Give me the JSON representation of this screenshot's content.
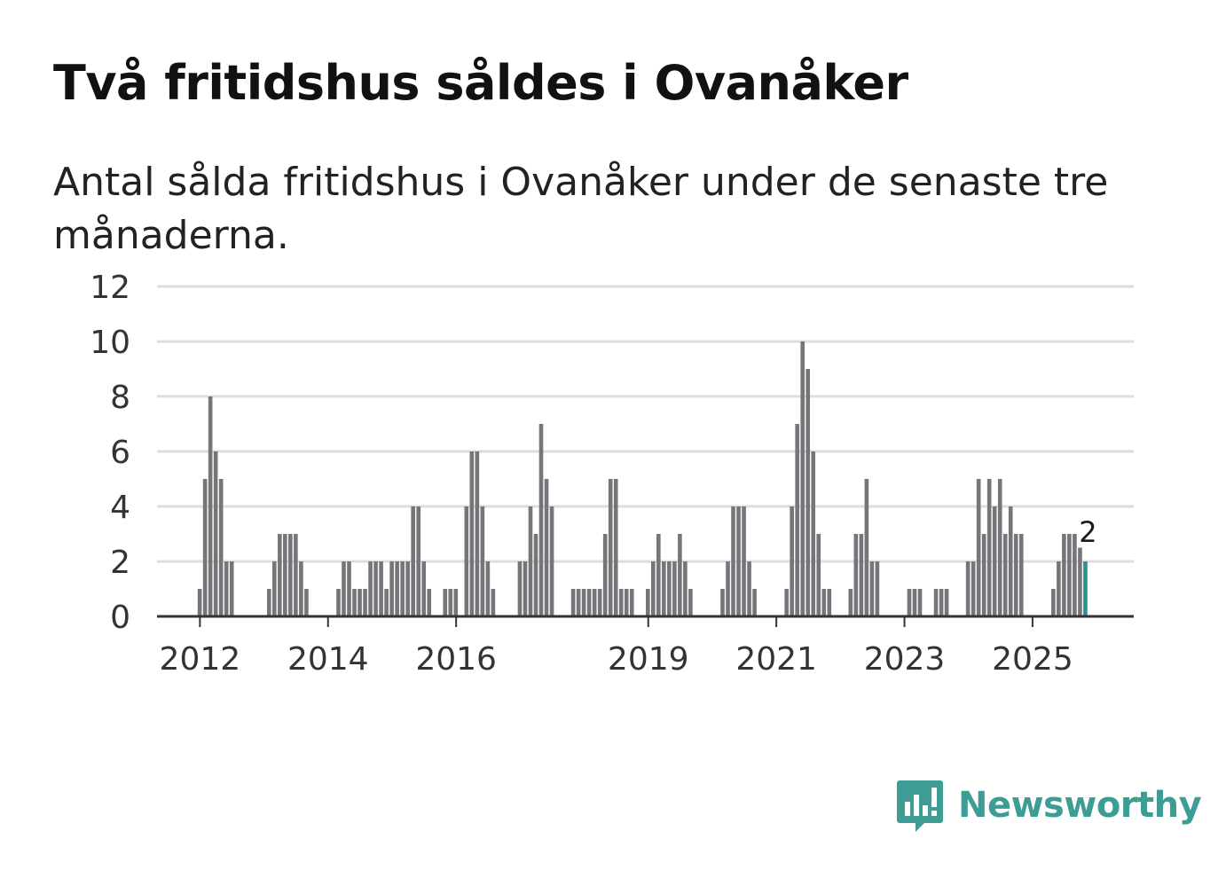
{
  "title": "Två fritidshus såldes i Ovanåker",
  "subtitle": "Antal sålda fritidshus i Ovanåker under de senaste tre månaderna.",
  "brand": {
    "name": "Newsworthy"
  },
  "colors": {
    "bar": "#76757a",
    "highlight": "#24948e",
    "grid": "#dddddd",
    "axis": "#333333",
    "brand": "#3d9d95"
  },
  "chart_data": {
    "type": "bar",
    "title": "Två fritidshus såldes i Ovanåker",
    "subtitle": "Antal sålda fritidshus i Ovanåker under de senaste tre månaderna.",
    "x_start": 2011.58,
    "x_step": 0.0833,
    "values": [
      0,
      0,
      0,
      0,
      0,
      1,
      5,
      8,
      6,
      5,
      2,
      2,
      0,
      0,
      0,
      0,
      0,
      0,
      1,
      2,
      3,
      3,
      3,
      3,
      2,
      1,
      0,
      0,
      0,
      0,
      0,
      1,
      2,
      2,
      1,
      1,
      1,
      2,
      2,
      2,
      1,
      2,
      2,
      2,
      2,
      4,
      4,
      2,
      1,
      0,
      0,
      1,
      1,
      1,
      0,
      4,
      6,
      6,
      4,
      2,
      1,
      0,
      0,
      0,
      0,
      2,
      2,
      4,
      3,
      7,
      5,
      4,
      0,
      0,
      0,
      1,
      1,
      1,
      1,
      1,
      1,
      3,
      5,
      5,
      1,
      1,
      1,
      0,
      0,
      1,
      2,
      3,
      2,
      2,
      2,
      3,
      2,
      1,
      0,
      0,
      0,
      0,
      0,
      1,
      2,
      4,
      4,
      4,
      2,
      1,
      0,
      0,
      0,
      0,
      0,
      1,
      4,
      7,
      10,
      9,
      6,
      3,
      1,
      1,
      0,
      0,
      0,
      1,
      3,
      3,
      5,
      2,
      2,
      0,
      0,
      0,
      0,
      0,
      1,
      1,
      1,
      0,
      0,
      1,
      1,
      1,
      0,
      0,
      0,
      2,
      2,
      5,
      3,
      5,
      4,
      5,
      3,
      4,
      3,
      3,
      0,
      0,
      0,
      0,
      0,
      1,
      2,
      3,
      3,
      3,
      2.5,
      2
    ],
    "highlight_index": -1,
    "highlight_label": "2",
    "x_ticks": [
      "2012",
      "2014",
      "2016",
      "2019",
      "2021",
      "2023",
      "2025"
    ],
    "y_ticks": [
      "0",
      "2",
      "4",
      "6",
      "8",
      "10",
      "12"
    ],
    "ylim": [
      0,
      12
    ],
    "xlim": [
      2011.33,
      2026.58
    ],
    "xlabel": "",
    "ylabel": ""
  }
}
